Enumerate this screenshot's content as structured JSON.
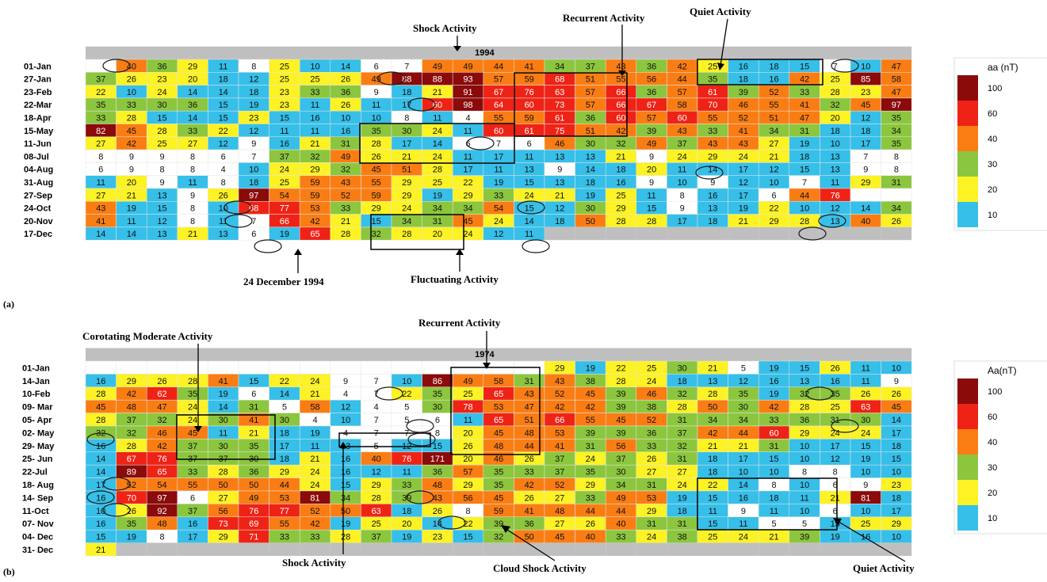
{
  "palette": {
    "10": "#36bfe8",
    "20": "#fcf224",
    "30": "#8cc63e",
    "40": "#fa7d14",
    "60": "#ee2316",
    "100": "#8b0a0a",
    "blank": "#ffffff",
    "gray": "#bfbfbf"
  },
  "chart_data": [
    {
      "type": "heatmap",
      "panel_label": "(a)",
      "year": "1994",
      "unit_label": "aa (nT)",
      "legend_labels": [
        "100",
        "60",
        "40",
        "30",
        "20",
        "10"
      ],
      "rows": [
        {
          "label": "01-Jan",
          "values": [
            "",
            40,
            36,
            29,
            11,
            8,
            25,
            10,
            14,
            6,
            7,
            49,
            49,
            44,
            41,
            34,
            37,
            43,
            36,
            42,
            25,
            16,
            18,
            15,
            7,
            10,
            47
          ]
        },
        {
          "label": "27-Jan",
          "values": [
            37,
            26,
            23,
            20,
            18,
            12,
            25,
            25,
            26,
            49,
            88,
            88,
            93,
            57,
            59,
            68,
            51,
            55,
            56,
            44,
            35,
            18,
            16,
            42,
            25,
            85,
            58
          ]
        },
        {
          "label": "23-Feb",
          "values": [
            22,
            10,
            24,
            14,
            14,
            18,
            23,
            33,
            36,
            9,
            18,
            21,
            91,
            67,
            76,
            63,
            57,
            66,
            36,
            57,
            61,
            39,
            52,
            33,
            28,
            23,
            47
          ]
        },
        {
          "label": "22-Mar",
          "values": [
            35,
            33,
            30,
            36,
            15,
            19,
            23,
            11,
            26,
            11,
            17,
            60,
            98,
            64,
            60,
            73,
            57,
            66,
            67,
            58,
            70,
            46,
            55,
            41,
            32,
            45,
            97
          ]
        },
        {
          "label": "18-Apr",
          "values": [
            33,
            28,
            15,
            14,
            15,
            23,
            15,
            16,
            10,
            10,
            8,
            11,
            4,
            55,
            59,
            61,
            36,
            60,
            57,
            60,
            55,
            52,
            51,
            47,
            20,
            12,
            35
          ]
        },
        {
          "label": "15-May",
          "values": [
            82,
            45,
            28,
            33,
            22,
            12,
            11,
            11,
            16,
            35,
            30,
            24,
            11,
            60,
            61,
            75,
            51,
            42,
            39,
            43,
            33,
            41,
            34,
            31,
            18,
            18,
            34
          ]
        },
        {
          "label": "11-Jun",
          "values": [
            27,
            42,
            25,
            27,
            12,
            9,
            16,
            21,
            31,
            28,
            17,
            14,
            6,
            7,
            6,
            46,
            30,
            32,
            49,
            37,
            43,
            43,
            27,
            19,
            10,
            17,
            35
          ]
        },
        {
          "label": "08-Jul",
          "values": [
            8,
            9,
            9,
            8,
            6,
            7,
            37,
            32,
            49,
            26,
            21,
            24,
            11,
            17,
            11,
            13,
            13,
            21,
            9,
            24,
            29,
            24,
            21,
            18,
            13,
            7,
            8
          ]
        },
        {
          "label": "04-Aug",
          "values": [
            6,
            9,
            8,
            8,
            4,
            10,
            24,
            29,
            32,
            45,
            51,
            28,
            17,
            11,
            13,
            9,
            14,
            18,
            20,
            11,
            14,
            17,
            12,
            15,
            13,
            9,
            8
          ]
        },
        {
          "label": "31-Aug",
          "values": [
            11,
            20,
            9,
            11,
            8,
            18,
            25,
            59,
            43,
            55,
            29,
            25,
            22,
            19,
            15,
            13,
            18,
            16,
            9,
            10,
            9,
            12,
            10,
            7,
            11,
            29,
            31
          ]
        },
        {
          "label": "27-Sep",
          "values": [
            27,
            21,
            13,
            9,
            26,
            97,
            54,
            59,
            52,
            59,
            29,
            19,
            29,
            33,
            24,
            21,
            19,
            25,
            11,
            8,
            16,
            17,
            6,
            44,
            76,
            "",
            ""
          ]
        },
        {
          "label": "24-Oct",
          "values": [
            43,
            19,
            15,
            8,
            10,
            68,
            77,
            53,
            33,
            29,
            24,
            34,
            34,
            54,
            15,
            12,
            30,
            29,
            15,
            9,
            13,
            19,
            22,
            10,
            12,
            14,
            34
          ]
        },
        {
          "label": "20-Nov",
          "values": [
            41,
            11,
            12,
            8,
            11,
            7,
            66,
            42,
            21,
            15,
            34,
            31,
            45,
            24,
            14,
            18,
            50,
            28,
            28,
            17,
            18,
            21,
            29,
            28,
            13,
            40,
            26
          ]
        },
        {
          "label": "17-Dec",
          "values": [
            14,
            14,
            13,
            21,
            13,
            6,
            19,
            65,
            28,
            32,
            28,
            20,
            24,
            12,
            11
          ]
        }
      ],
      "annotations": [
        "Shock Activity",
        "Recurrent Activity",
        "Quiet Activity",
        "24 December 1994",
        "Fluctuating Activity"
      ]
    },
    {
      "type": "heatmap",
      "panel_label": "(b)",
      "year": "1974",
      "unit_label": "Aa(nT)",
      "legend_labels": [
        "100",
        "60",
        "40",
        "30",
        "20",
        "10"
      ],
      "rows": [
        {
          "label": "01-Jan",
          "values": [
            "",
            "",
            "",
            "",
            "",
            "",
            "",
            "",
            "",
            "",
            "",
            "",
            "",
            "",
            "",
            29,
            19,
            22,
            25,
            30,
            21,
            5,
            19,
            15,
            26,
            11,
            10,
            10
          ]
        },
        {
          "label": "14-Jan",
          "values": [
            16,
            29,
            26,
            28,
            41,
            15,
            22,
            24,
            9,
            7,
            10,
            86,
            49,
            58,
            31,
            43,
            38,
            28,
            24,
            18,
            13,
            12,
            16,
            13,
            16,
            11,
            9
          ]
        },
        {
          "label": "10-Feb",
          "values": [
            28,
            42,
            62,
            35,
            19,
            6,
            14,
            21,
            4,
            7,
            22,
            35,
            25,
            65,
            43,
            52,
            45,
            39,
            46,
            32,
            28,
            35,
            19,
            32,
            35,
            26,
            26
          ]
        },
        {
          "label": "09- Mar",
          "values": [
            45,
            48,
            47,
            24,
            14,
            31,
            5,
            58,
            12,
            4,
            5,
            30,
            78,
            53,
            47,
            42,
            42,
            39,
            38,
            28,
            50,
            30,
            42,
            28,
            25,
            63,
            45
          ]
        },
        {
          "label": "05- Apr",
          "values": [
            28,
            37,
            32,
            24,
            30,
            41,
            30,
            4,
            10,
            7,
            5,
            6,
            11,
            65,
            51,
            66,
            55,
            45,
            52,
            31,
            34,
            34,
            33,
            36,
            31,
            30,
            14
          ]
        },
        {
          "label": "02- May",
          "values": [
            32,
            32,
            46,
            45,
            11,
            21,
            18,
            19,
            4,
            7,
            7,
            8,
            20,
            45,
            48,
            53,
            39,
            39,
            36,
            37,
            42,
            44,
            60,
            29,
            24,
            24,
            17
          ]
        },
        {
          "label": "29- May",
          "values": [
            16,
            28,
            42,
            37,
            30,
            35,
            17,
            11,
            13,
            5,
            12,
            15,
            26,
            48,
            44,
            41,
            31,
            56,
            33,
            32,
            21,
            21,
            31,
            10,
            17,
            15,
            18
          ]
        },
        {
          "label": "25- Jun",
          "values": [
            14,
            67,
            76,
            37,
            37,
            30,
            18,
            21,
            16,
            40,
            76,
            171,
            20,
            46,
            26,
            37,
            24,
            37,
            26,
            31,
            18,
            17,
            15,
            10,
            12,
            19,
            15
          ]
        },
        {
          "label": "22-Jul",
          "values": [
            14,
            89,
            65,
            33,
            28,
            36,
            29,
            24,
            16,
            12,
            11,
            36,
            57,
            35,
            33,
            37,
            35,
            30,
            27,
            27,
            18,
            10,
            10,
            8,
            8,
            10,
            10
          ]
        },
        {
          "label": "18- Aug",
          "values": [
            17,
            52,
            54,
            55,
            50,
            50,
            44,
            24,
            15,
            29,
            33,
            48,
            29,
            35,
            42,
            52,
            29,
            34,
            31,
            24,
            22,
            14,
            8,
            10,
            6,
            9,
            23
          ]
        },
        {
          "label": "14- Sep",
          "values": [
            16,
            70,
            97,
            6,
            27,
            49,
            53,
            81,
            34,
            28,
            39,
            43,
            56,
            45,
            26,
            27,
            33,
            49,
            53,
            19,
            15,
            16,
            18,
            11,
            21,
            81,
            18
          ]
        },
        {
          "label": "11-Oct",
          "values": [
            10,
            26,
            92,
            37,
            56,
            76,
            77,
            52,
            50,
            63,
            18,
            26,
            8,
            59,
            41,
            48,
            44,
            44,
            29,
            18,
            11,
            9,
            11,
            10,
            6,
            10,
            17
          ]
        },
        {
          "label": "07- Nov",
          "values": [
            16,
            35,
            48,
            16,
            73,
            69,
            55,
            42,
            19,
            25,
            20,
            14,
            22,
            39,
            36,
            27,
            26,
            40,
            31,
            31,
            15,
            11,
            5,
            5,
            15,
            25,
            29
          ]
        },
        {
          "label": "04- Dec",
          "values": [
            15,
            19,
            8,
            17,
            29,
            71,
            33,
            33,
            28,
            37,
            19,
            23,
            15,
            32,
            50,
            45,
            40,
            33,
            24,
            38,
            25,
            24,
            21,
            39,
            19,
            16,
            10
          ]
        },
        {
          "label": "31- Dec",
          "values": [
            21
          ]
        }
      ],
      "annotations": [
        "Corotating Moderate Activity",
        "Recurrent Activity",
        "Shock Activity",
        "Cloud Shock Activity",
        "Quiet Activity"
      ]
    }
  ]
}
